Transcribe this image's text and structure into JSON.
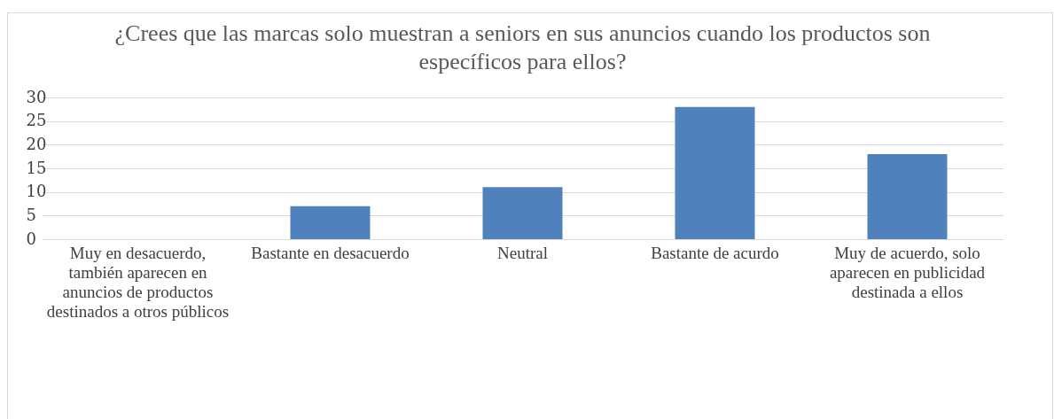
{
  "chart_data": {
    "type": "bar",
    "title": "¿Crees que las marcas solo muestran a seniors en sus anuncios cuando los productos son específicos para ellos?",
    "categories": [
      "Muy en desacuerdo, también aparecen en anuncios de productos destinados a otros públicos",
      "Bastante en desacuerdo",
      "Neutral",
      "Bastante de acurdo",
      "Muy de acuerdo, solo aparecen en publicidad destinada a ellos"
    ],
    "values": [
      0,
      7,
      11,
      28,
      18
    ],
    "color": "#4f81bd",
    "ylim": [
      0,
      30
    ],
    "yticks": [
      0,
      5,
      10,
      15,
      20,
      25,
      30
    ],
    "grid": "y",
    "legend": false
  }
}
